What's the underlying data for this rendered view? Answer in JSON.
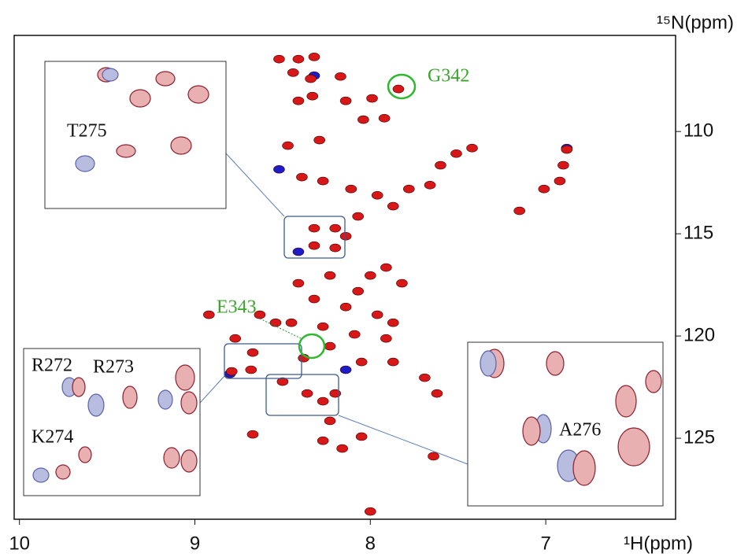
{
  "chart_data": {
    "type": "scatter",
    "x_label": "¹H(ppm)",
    "y_label": "¹⁵N(ppm)",
    "xlim": [
      10.03,
      6.26
    ],
    "ylim": [
      105.3,
      128.96
    ],
    "xticks": [
      10,
      9,
      8,
      7
    ],
    "yticks": [
      110,
      115,
      120,
      125
    ],
    "annotations": [
      "G342",
      "E343",
      "T275",
      "R272",
      "R273",
      "K274",
      "A276"
    ],
    "series": [
      {
        "color": "#1c1cc8",
        "x": [
          8.41,
          8.8,
          8.14,
          8.32,
          8.52,
          6.88
        ],
        "y": [
          115.88,
          121.85,
          121.65,
          107.27,
          111.85,
          110.81
        ]
      },
      {
        "color": "#d81818",
        "x": [
          8.52,
          8.41,
          8.32,
          8.44,
          8.34,
          8.17,
          8.41,
          8.33,
          8.14,
          7.99,
          7.92,
          8.04,
          7.84,
          8.29,
          8.47,
          8.39,
          8.27,
          8.11,
          7.96,
          7.87,
          7.78,
          7.66,
          7.6,
          7.51,
          7.42,
          8.07,
          8.2,
          8.32,
          8.32,
          8.2,
          8.14,
          7.15,
          7.01,
          6.92,
          6.88,
          6.9,
          8.41,
          8.23,
          8.0,
          7.91,
          7.82,
          8.07,
          8.32,
          8.14,
          7.96,
          7.87,
          8.45,
          8.27,
          8.09,
          7.91,
          8.23,
          8.05,
          8.38,
          8.54,
          8.63,
          8.92,
          8.77,
          8.67,
          8.79,
          8.68,
          8.5,
          8.27,
          8.36,
          8.2,
          7.87,
          7.69,
          8.67,
          8.27,
          8.16,
          8.05,
          7.62,
          7.64,
          8.0,
          8.23
        ],
        "y": [
          106.46,
          106.46,
          106.35,
          107.12,
          107.42,
          107.31,
          108.5,
          108.27,
          108.5,
          108.38,
          109.35,
          109.42,
          107.92,
          110.42,
          110.69,
          112.23,
          112.42,
          112.81,
          113.12,
          113.65,
          112.81,
          112.62,
          111.65,
          111.08,
          110.81,
          114.15,
          114.73,
          114.73,
          115.58,
          115.69,
          115.12,
          113.88,
          112.81,
          112.42,
          110.88,
          111.65,
          117.42,
          117.04,
          117.04,
          116.65,
          117.42,
          117.81,
          118.19,
          118.58,
          118.96,
          119.35,
          119.35,
          119.54,
          119.92,
          120.12,
          120.5,
          121.27,
          121.08,
          119.35,
          118.96,
          118.96,
          120.12,
          120.81,
          121.73,
          121.65,
          122.23,
          123.19,
          122.81,
          122.81,
          121.27,
          122.04,
          124.81,
          125.12,
          125.5,
          124.92,
          122.81,
          125.88,
          128.58,
          124.15
        ]
      }
    ]
  }
}
